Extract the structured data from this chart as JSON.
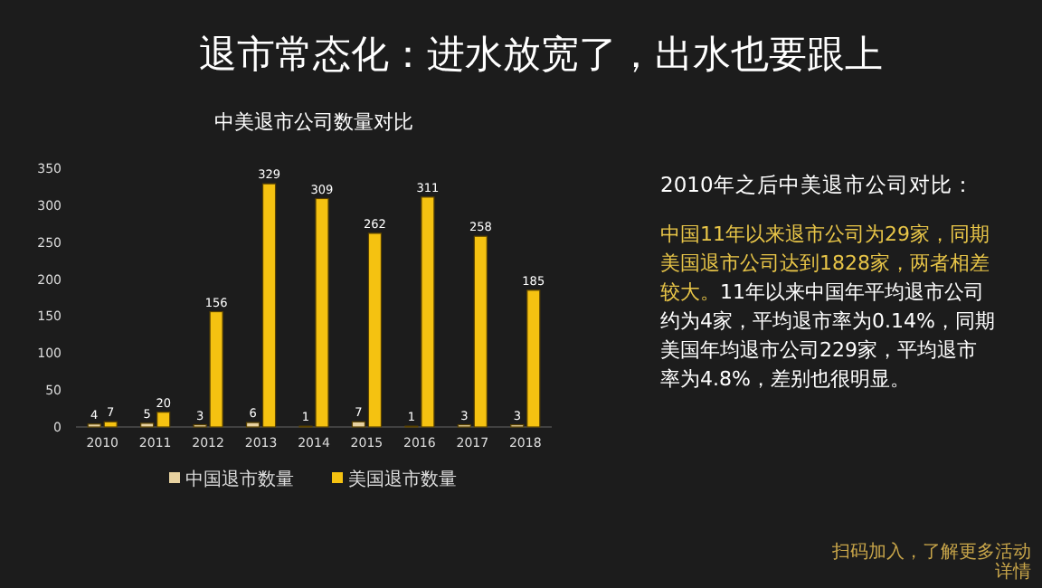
{
  "chart_data": [
    {
      "type": "bar",
      "title": "中美退市公司数量对比",
      "categories": [
        "2010",
        "2011",
        "2012",
        "2013",
        "2014",
        "2015",
        "2016",
        "2017",
        "2018"
      ],
      "series": [
        {
          "name": "中国退市数量",
          "color": "#e8d2a0",
          "values": [
            4,
            5,
            3,
            6,
            1,
            7,
            1,
            3,
            3
          ]
        },
        {
          "name": "美国退市数量",
          "color": "#f5c211",
          "values": [
            7,
            20,
            156,
            329,
            309,
            262,
            311,
            258,
            185
          ]
        }
      ],
      "ylim": [
        0,
        350
      ],
      "yticks": [
        0,
        50,
        100,
        150,
        200,
        250,
        300,
        350
      ],
      "data_labels": true,
      "legend": "bottom",
      "grid": false
    },
    {
      "type": "other",
      "title": "退市常态化：进水放宽了，出水也要跟上",
      "subtitle": "2010年之后中美退市公司对比：",
      "annotations": [
        "中国11年以来退市公司为29家，同期美国退市公司达到1828家，两者相差较大。",
        "11年以来中国年平均退市公司约为4家，平均退市率为0.14%，同期美国年均退市公司229家，平均退市率为4.8%，差别也很明显。",
        "扫码加入，了解更多活动详情"
      ]
    }
  ]
}
